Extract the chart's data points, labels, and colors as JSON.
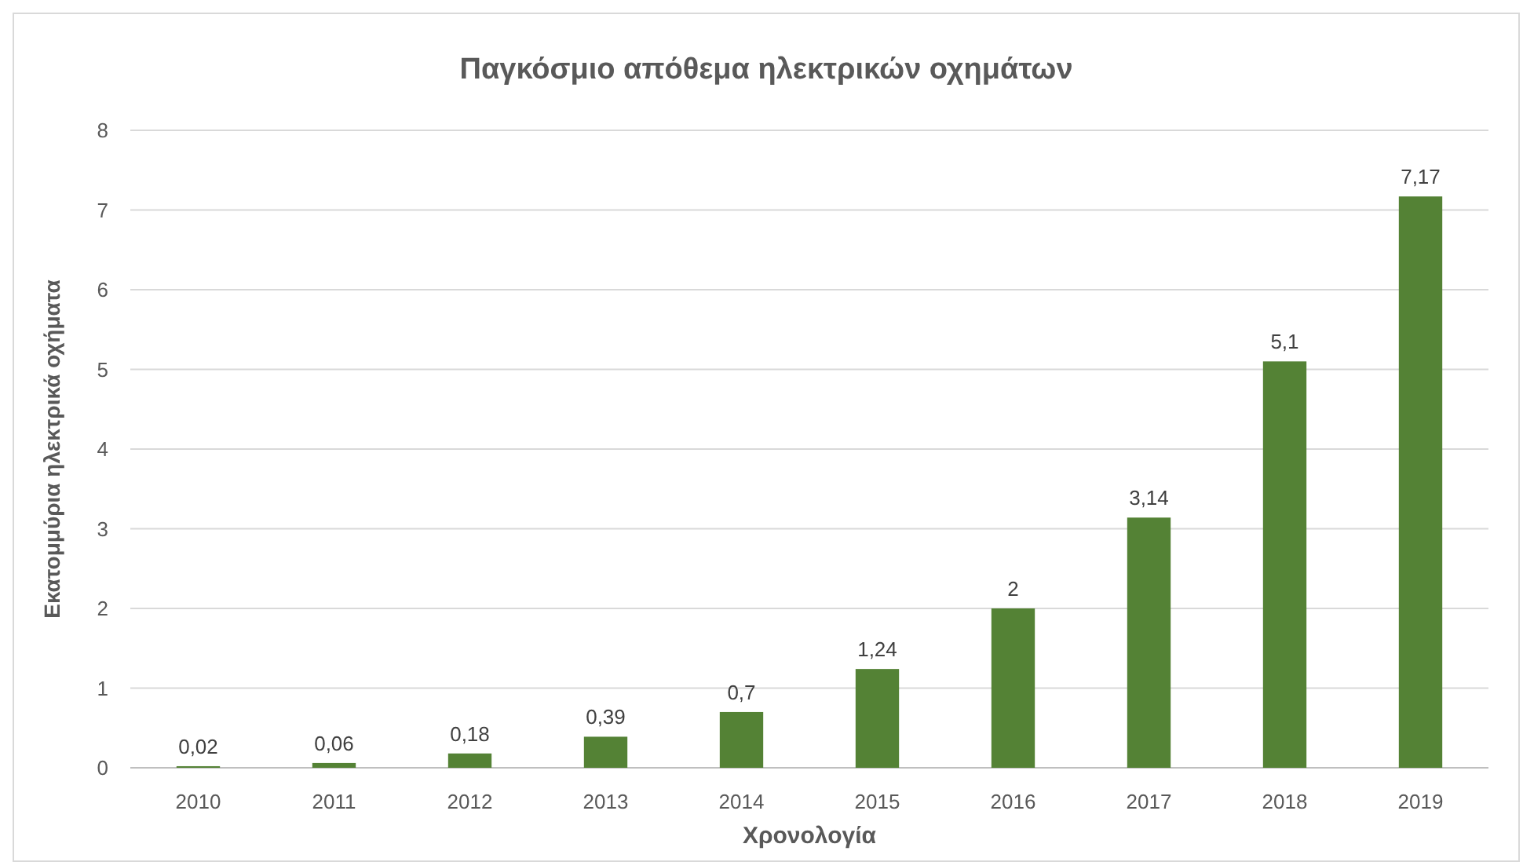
{
  "chart_data": {
    "type": "bar",
    "title": "Παγκόσμιο απόθεμα ηλεκτρικών οχημάτων",
    "xlabel": "Χρονολογία",
    "ylabel": "Εκατομμύρια ηλεκτρικά οχήματα",
    "categories": [
      "2010",
      "2011",
      "2012",
      "2013",
      "2014",
      "2015",
      "2016",
      "2017",
      "2018",
      "2019"
    ],
    "values": [
      0.02,
      0.06,
      0.18,
      0.39,
      0.7,
      1.24,
      2,
      3.14,
      5.1,
      7.17
    ],
    "value_labels": [
      "0,02",
      "0,06",
      "0,18",
      "0,39",
      "0,7",
      "1,24",
      "2",
      "3,14",
      "5,1",
      "7,17"
    ],
    "color": "#548235",
    "ylim": [
      0,
      8
    ],
    "yticks": [
      0,
      1,
      2,
      3,
      4,
      5,
      6,
      7,
      8
    ],
    "grid": "y"
  }
}
